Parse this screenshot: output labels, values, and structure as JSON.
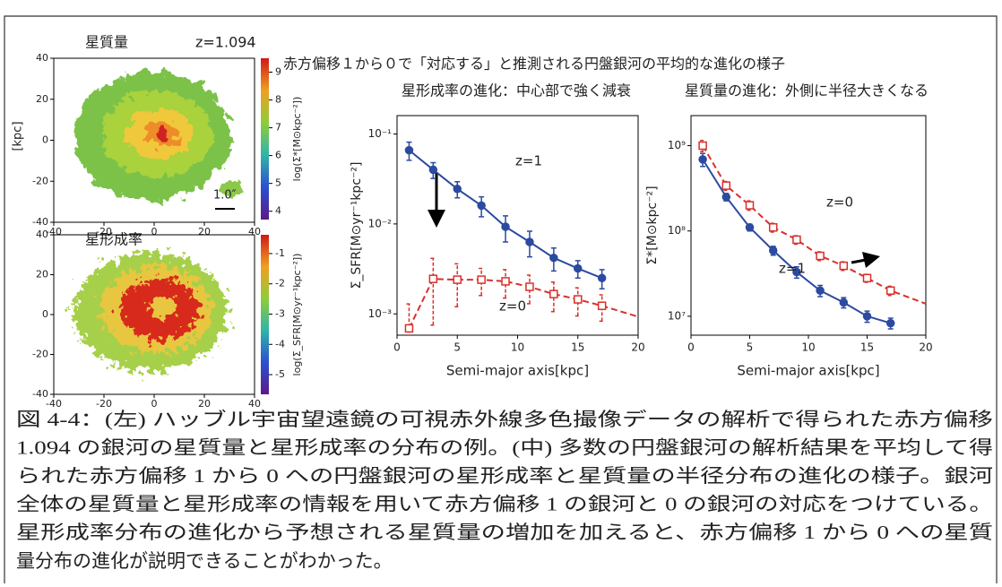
{
  "figure_title": "赤方偏移１から０で「対応する」と推測される円盤銀河の平均的な進化の様子",
  "maps": [
    {
      "title": "星質量",
      "redshift_label": "z=1.094",
      "ylabel": "[kpc]",
      "scale_label": "1.0″",
      "colorbar_label": "log(Σ*[M⊙kpc⁻²])",
      "xlim": [
        -40,
        40
      ],
      "ylim": [
        -40,
        40
      ],
      "xticks": [
        -40,
        -20,
        0,
        20,
        40
      ],
      "yticks": [
        -40,
        -20,
        0,
        20,
        40
      ],
      "clim": [
        3.7,
        9.5
      ],
      "cticks": [
        4,
        5,
        6,
        7,
        8,
        9
      ]
    },
    {
      "title": "星形成率",
      "colorbar_label": "log(Σ_SFR[M⊙yr⁻¹kpc⁻²])",
      "xlim": [
        -40,
        40
      ],
      "ylim": [
        -40,
        40
      ],
      "xticks": [
        -40,
        -20,
        0,
        20,
        40
      ],
      "yticks": [
        -40,
        -20,
        0,
        20,
        40
      ],
      "clim": [
        -5.65,
        -0.38
      ],
      "cticks": [
        -5,
        -4,
        -3,
        -2,
        -1
      ]
    }
  ],
  "chart_data": [
    {
      "type": "line",
      "title": "星形成率の進化：中心部で強く減衰",
      "xlabel": "Semi-major axis[kpc]",
      "ylabel": "Σ_SFR[M⊙yr⁻¹kpc⁻²]",
      "log_y": true,
      "xlim": [
        0,
        20
      ],
      "ylim": [
        0.00058,
        0.16
      ],
      "xticks": [
        0,
        5,
        10,
        15,
        20
      ],
      "yticks": [
        {
          "value": 0.001,
          "label": "10⁻³"
        },
        {
          "value": 0.01,
          "label": "10⁻²"
        },
        {
          "value": 0.1,
          "label": "10⁻¹"
        }
      ],
      "series": [
        {
          "name": "z=1",
          "color": "#2b4ba0",
          "marker": "circle",
          "dashed": false,
          "x": [
            1,
            3,
            5,
            7,
            9,
            11,
            13,
            15,
            17
          ],
          "values": [
            0.066,
            0.04,
            0.0245,
            0.016,
            0.0093,
            0.0063,
            0.0042,
            0.0032,
            0.0025
          ],
          "errors": [
            0.015,
            0.008,
            0.005,
            0.004,
            0.003,
            0.002,
            0.0012,
            0.0007,
            0.0006
          ]
        },
        {
          "name": "z=0",
          "color": "#d9302b",
          "marker": "square",
          "dashed": true,
          "x": [
            1,
            3,
            5,
            7,
            9,
            11,
            13,
            15,
            17,
            20
          ],
          "values": [
            0.00069,
            0.00245,
            0.0024,
            0.0024,
            0.0023,
            0.002,
            0.00166,
            0.00145,
            0.00123,
            0.00093
          ],
          "errors": [
            0.0006,
            0.0017,
            0.0012,
            0.0008,
            0.0008,
            0.0007,
            0.0006,
            0.0005,
            0.0004,
            null
          ]
        }
      ]
    },
    {
      "type": "line",
      "title": "星質量の進化：外側に半径大きくなる",
      "xlabel": "Semi-major axis[kpc]",
      "ylabel": "Σ*[M⊙kpc⁻²]",
      "log_y": true,
      "xlim": [
        0,
        20
      ],
      "ylim": [
        6000000,
        2250000000
      ],
      "xticks": [
        0,
        5,
        10,
        15,
        20
      ],
      "yticks": [
        {
          "value": 10000000,
          "label": "10⁷"
        },
        {
          "value": 100000000,
          "label": "10⁸"
        },
        {
          "value": 1000000000,
          "label": "10⁹"
        }
      ],
      "series": [
        {
          "name": "z=1",
          "color": "#2b4ba0",
          "marker": "circle",
          "dashed": false,
          "x": [
            1,
            3,
            5,
            7,
            9,
            11,
            13,
            15,
            17
          ],
          "values": [
            690000000,
            250000000,
            110000000,
            59000000,
            33000000,
            20000000,
            14500000,
            10000000,
            8300000
          ],
          "errors": [
            120000000,
            25000000,
            10000000,
            7000000,
            5000000,
            3000000,
            2000000,
            1500000,
            1200000
          ]
        },
        {
          "name": "z=0",
          "color": "#d9302b",
          "marker": "square",
          "dashed": true,
          "x": [
            1,
            3,
            5,
            7,
            9,
            11,
            13,
            15,
            17,
            20
          ],
          "values": [
            1000000000,
            340000000,
            200000000,
            110000000,
            79000000,
            51000000,
            39000000,
            28000000,
            20000000,
            14000000
          ],
          "errors": [
            150000000,
            40000000,
            25000000,
            13000000,
            9000000,
            6000000,
            4500000,
            3000000,
            2500000,
            null
          ]
        }
      ]
    }
  ],
  "caption": {
    "lines": [
      "図 4-4：(左) ハッブル宇宙望遠鏡の可視赤外線多色撮像データの解析で得られた赤方偏移",
      "1.094 の銀河の星質量と星形成率の分布の例。(中) 多数の円盤銀河の解析結果を平均して得",
      "られた赤方偏移 1 から 0 への円盤銀河の星形成率と星質量の半径分布の進化の様子。銀河",
      "全体の星質量と星形成率の情報を用いて赤方偏移 1 の銀河と 0 の銀河の対応をつけている。",
      "星形成率分布の進化から予想される星質量の増加を加えると、赤方偏移 1 から 0 への星質",
      "量分布の進化が説明できることがわかった。"
    ]
  }
}
